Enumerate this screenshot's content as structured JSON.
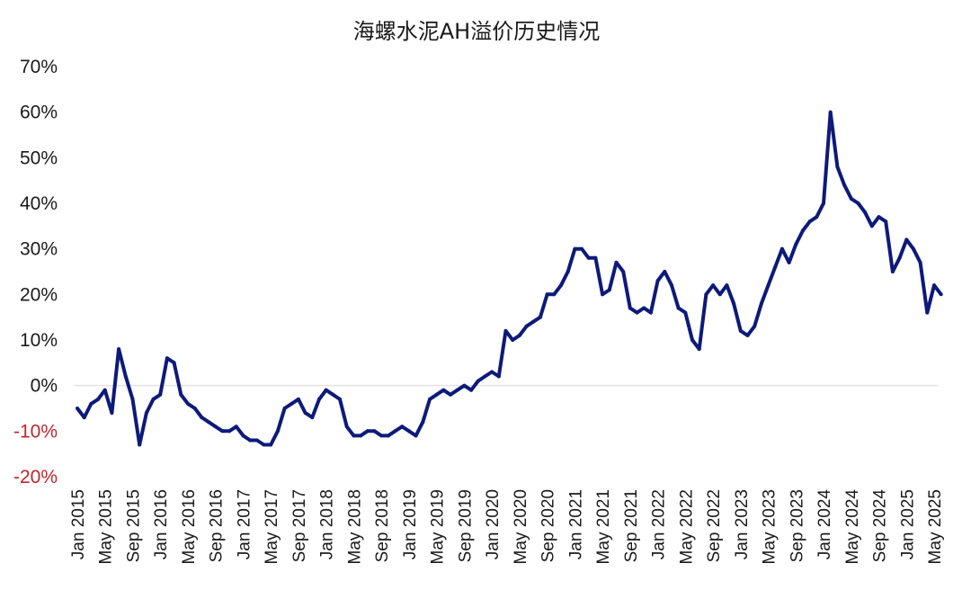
{
  "chart_data": {
    "type": "line",
    "title": "海螺水泥AH溢价历史情况",
    "xlabel": "",
    "ylabel": "",
    "ylim": [
      -0.2,
      0.7
    ],
    "y_ticks": [
      {
        "value": 0.7,
        "label": "70%"
      },
      {
        "value": 0.6,
        "label": "60%"
      },
      {
        "value": 0.5,
        "label": "50%"
      },
      {
        "value": 0.4,
        "label": "40%"
      },
      {
        "value": 0.3,
        "label": "30%"
      },
      {
        "value": 0.2,
        "label": "20%"
      },
      {
        "value": 0.1,
        "label": "10%"
      },
      {
        "value": 0.0,
        "label": "0%"
      },
      {
        "value": -0.1,
        "label": "-10%"
      },
      {
        "value": -0.2,
        "label": "-20%"
      }
    ],
    "x_ticks": [
      "Jan 2015",
      "May 2015",
      "Sep 2015",
      "Jan 2016",
      "May 2016",
      "Sep 2016",
      "Jan 2017",
      "May 2017",
      "Sep 2017",
      "Jan 2018",
      "May 2018",
      "Sep 2018",
      "Jan 2019",
      "May 2019",
      "Sep 2019",
      "Jan 2020",
      "May 2020",
      "Sep 2020",
      "Jan 2021",
      "May 2021",
      "Sep 2021",
      "Jan 2022",
      "May 2022",
      "Sep 2022",
      "Jan 2023",
      "May 2023",
      "Sep 2023",
      "Jan 2024",
      "May 2024",
      "Sep 2024",
      "Jan 2025",
      "May 2025"
    ],
    "grid": false,
    "zero_line": true,
    "colors": {
      "line": "#0d1a7a",
      "negative_tick": "#c0262d",
      "positive_tick": "#1a1a1a"
    },
    "series": [
      {
        "name": "",
        "x": [
          "2015-01",
          "2015-02",
          "2015-03",
          "2015-04",
          "2015-05",
          "2015-06",
          "2015-07",
          "2015-08",
          "2015-09",
          "2015-10",
          "2015-11",
          "2015-12",
          "2016-01",
          "2016-02",
          "2016-03",
          "2016-04",
          "2016-05",
          "2016-06",
          "2016-07",
          "2016-08",
          "2016-09",
          "2016-10",
          "2016-11",
          "2016-12",
          "2017-01",
          "2017-02",
          "2017-03",
          "2017-04",
          "2017-05",
          "2017-06",
          "2017-07",
          "2017-08",
          "2017-09",
          "2017-10",
          "2017-11",
          "2017-12",
          "2018-01",
          "2018-02",
          "2018-03",
          "2018-04",
          "2018-05",
          "2018-06",
          "2018-07",
          "2018-08",
          "2018-09",
          "2018-10",
          "2018-11",
          "2018-12",
          "2019-01",
          "2019-02",
          "2019-03",
          "2019-04",
          "2019-05",
          "2019-06",
          "2019-07",
          "2019-08",
          "2019-09",
          "2019-10",
          "2019-11",
          "2019-12",
          "2020-01",
          "2020-02",
          "2020-03",
          "2020-04",
          "2020-05",
          "2020-06",
          "2020-07",
          "2020-08",
          "2020-09",
          "2020-10",
          "2020-11",
          "2020-12",
          "2021-01",
          "2021-02",
          "2021-03",
          "2021-04",
          "2021-05",
          "2021-06",
          "2021-07",
          "2021-08",
          "2021-09",
          "2021-10",
          "2021-11",
          "2021-12",
          "2022-01",
          "2022-02",
          "2022-03",
          "2022-04",
          "2022-05",
          "2022-06",
          "2022-07",
          "2022-08",
          "2022-09",
          "2022-10",
          "2022-11",
          "2022-12",
          "2023-01",
          "2023-02",
          "2023-03",
          "2023-04",
          "2023-05",
          "2023-06",
          "2023-07",
          "2023-08",
          "2023-09",
          "2023-10",
          "2023-11",
          "2023-12",
          "2024-01",
          "2024-02",
          "2024-03",
          "2024-04",
          "2024-05",
          "2024-06",
          "2024-07",
          "2024-08",
          "2024-09",
          "2024-10",
          "2024-11",
          "2024-12",
          "2025-01",
          "2025-02",
          "2025-03",
          "2025-04",
          "2025-05",
          "2025-06"
        ],
        "values": [
          -0.05,
          -0.07,
          -0.04,
          -0.03,
          -0.01,
          -0.06,
          0.08,
          0.02,
          -0.03,
          -0.13,
          -0.06,
          -0.03,
          -0.02,
          0.06,
          0.05,
          -0.02,
          -0.04,
          -0.05,
          -0.07,
          -0.08,
          -0.09,
          -0.1,
          -0.1,
          -0.09,
          -0.11,
          -0.12,
          -0.12,
          -0.13,
          -0.13,
          -0.1,
          -0.05,
          -0.04,
          -0.03,
          -0.06,
          -0.07,
          -0.03,
          -0.01,
          -0.02,
          -0.03,
          -0.09,
          -0.11,
          -0.11,
          -0.1,
          -0.1,
          -0.11,
          -0.11,
          -0.1,
          -0.09,
          -0.1,
          -0.11,
          -0.08,
          -0.03,
          -0.02,
          -0.01,
          -0.02,
          -0.01,
          0.0,
          -0.01,
          0.01,
          0.02,
          0.03,
          0.02,
          0.12,
          0.1,
          0.11,
          0.13,
          0.14,
          0.15,
          0.2,
          0.2,
          0.22,
          0.25,
          0.3,
          0.3,
          0.28,
          0.28,
          0.2,
          0.21,
          0.27,
          0.25,
          0.17,
          0.16,
          0.17,
          0.16,
          0.23,
          0.25,
          0.22,
          0.17,
          0.16,
          0.1,
          0.08,
          0.2,
          0.22,
          0.2,
          0.22,
          0.18,
          0.12,
          0.11,
          0.13,
          0.18,
          0.22,
          0.26,
          0.3,
          0.27,
          0.31,
          0.34,
          0.36,
          0.37,
          0.4,
          0.6,
          0.48,
          0.44,
          0.41,
          0.4,
          0.38,
          0.35,
          0.37,
          0.36,
          0.25,
          0.28,
          0.32,
          0.3,
          0.27,
          0.16,
          0.22,
          0.2
        ]
      }
    ]
  }
}
